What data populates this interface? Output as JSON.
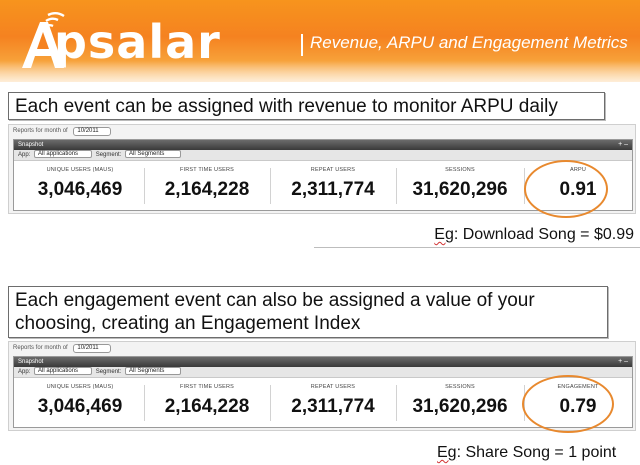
{
  "banner": {
    "logo_text": "psalar",
    "subtitle": "Revenue, ARPU and Engagement Metrics",
    "colors": {
      "orange": "#f58220",
      "text": "#ffffff"
    }
  },
  "callouts": [
    {
      "text": "Each event can be assigned with revenue to monitor ARPU daily"
    },
    {
      "text": "Each engagement event can also be assigned a value of your choosing, creating an Engagement Index"
    }
  ],
  "dashboards": [
    {
      "reports_label": "Reports for month of",
      "month": "10/2011",
      "panel_title": "Snapshot",
      "panel_controls": "+ –",
      "app_label": "App:",
      "app_value": "All applications",
      "segment_label": "Segment:",
      "segment_value": "All Segments",
      "metrics": [
        {
          "label": "UNIQUE USERS (MAUs)",
          "value": "3,046,469"
        },
        {
          "label": "FIRST TIME USERS",
          "value": "2,164,228"
        },
        {
          "label": "REPEAT USERS",
          "value": "2,311,774"
        },
        {
          "label": "SESSIONS",
          "value": "31,620,296"
        },
        {
          "label": "ARPU",
          "value": "0.91"
        }
      ]
    },
    {
      "reports_label": "Reports for month of",
      "month": "10/2011",
      "panel_title": "Snapshot",
      "panel_controls": "+ –",
      "app_label": "App:",
      "app_value": "All applications",
      "segment_label": "Segment:",
      "segment_value": "All Segments",
      "metrics": [
        {
          "label": "UNIQUE USERS (MAUs)",
          "value": "3,046,469"
        },
        {
          "label": "FIRST TIME USERS",
          "value": "2,164,228"
        },
        {
          "label": "REPEAT USERS",
          "value": "2,311,774"
        },
        {
          "label": "SESSIONS",
          "value": "31,620,296"
        },
        {
          "label": "ENGAGEMENT",
          "value": "0.79"
        }
      ]
    }
  ],
  "notes": [
    {
      "prefix": "Eg",
      "text": ": Download Song = $0.99"
    },
    {
      "prefix": "Eg",
      "text": ": Share Song = 1 point"
    }
  ],
  "highlight_color": "#e8892e"
}
